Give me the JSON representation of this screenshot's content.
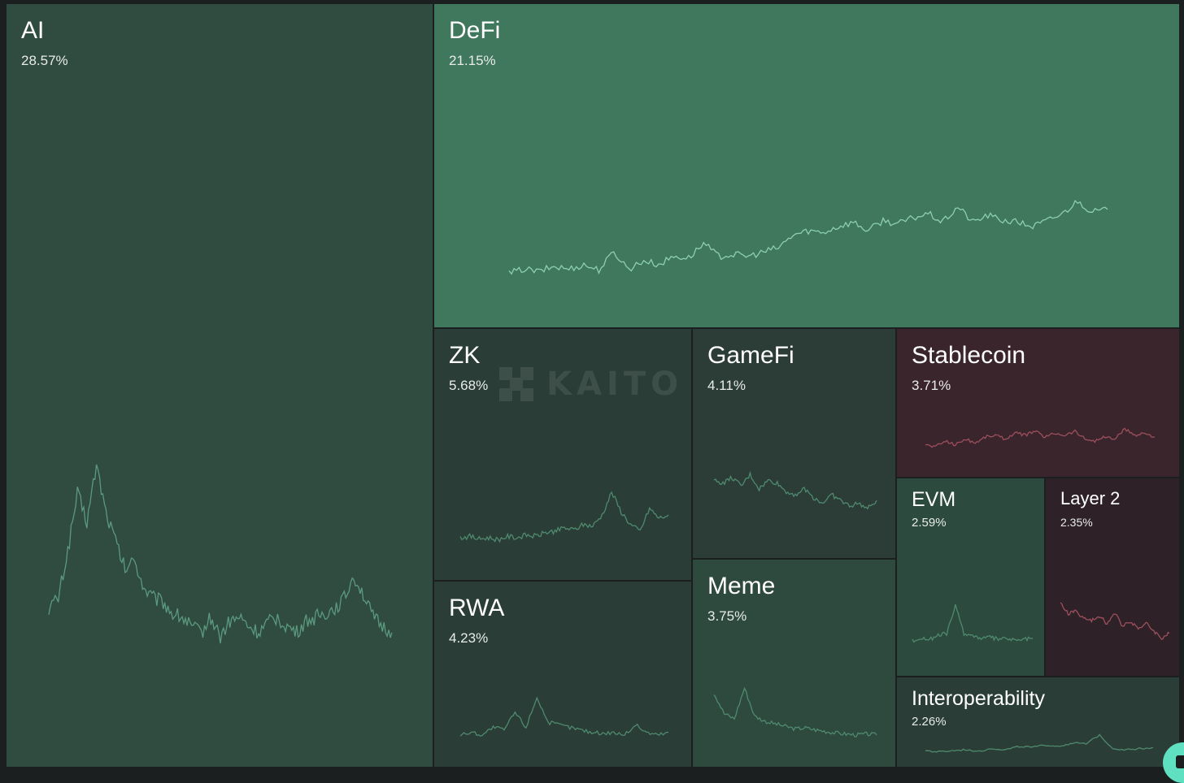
{
  "chart_data": {
    "type": "treemap",
    "title": "",
    "watermark": "KAITO",
    "categories": [
      {
        "key": "ai",
        "name": "AI",
        "share": "28.57%",
        "value": 28.57,
        "trend": "down",
        "color": "#304b40",
        "line_color": "#5b9a80",
        "sparkline": [
          0.25,
          0.3,
          0.55,
          0.85,
          0.7,
          1.0,
          0.75,
          0.6,
          0.45,
          0.5,
          0.35,
          0.3,
          0.28,
          0.22,
          0.2,
          0.15,
          0.12,
          0.2,
          0.1,
          0.18,
          0.2,
          0.15,
          0.12,
          0.17,
          0.2,
          0.15,
          0.12,
          0.18,
          0.2,
          0.22,
          0.25,
          0.3,
          0.42,
          0.32,
          0.2,
          0.15,
          0.12
        ]
      },
      {
        "key": "defi",
        "name": "DeFi",
        "share": "21.15%",
        "value": 21.15,
        "trend": "up",
        "color": "#40785d",
        "line_color": "#8ccfae",
        "sparkline": [
          0.1,
          0.15,
          0.12,
          0.18,
          0.15,
          0.2,
          0.14,
          0.35,
          0.15,
          0.25,
          0.2,
          0.3,
          0.28,
          0.45,
          0.3,
          0.32,
          0.3,
          0.35,
          0.4,
          0.55,
          0.6,
          0.58,
          0.65,
          0.7,
          0.6,
          0.72,
          0.68,
          0.75,
          0.8,
          0.7,
          0.88,
          0.7,
          0.78,
          0.72,
          0.7,
          0.65,
          0.72,
          0.8,
          0.95,
          0.82,
          0.85
        ]
      },
      {
        "key": "zk",
        "name": "ZK",
        "share": "5.68%",
        "value": 5.68,
        "trend": "up",
        "color": "#2a3d36",
        "line_color": "#4f8a6f",
        "sparkline": [
          0.1,
          0.12,
          0.08,
          0.1,
          0.07,
          0.12,
          0.1,
          0.14,
          0.12,
          0.18,
          0.2,
          0.25,
          0.22,
          0.3,
          0.28,
          0.45,
          0.8,
          0.5,
          0.3,
          0.2,
          0.55,
          0.4,
          0.45
        ]
      },
      {
        "key": "gamefi",
        "name": "GameFi",
        "share": "4.11%",
        "value": 4.11,
        "trend": "down",
        "color": "#2b3d36",
        "line_color": "#4f8a6f",
        "sparkline": [
          0.75,
          0.7,
          0.8,
          0.65,
          0.85,
          0.6,
          0.75,
          0.7,
          0.55,
          0.5,
          0.6,
          0.45,
          0.35,
          0.5,
          0.4,
          0.3,
          0.35,
          0.25,
          0.4
        ]
      },
      {
        "key": "stablecoin",
        "name": "Stablecoin",
        "share": "3.71%",
        "value": 3.71,
        "trend": "flat",
        "color": "#3a252c",
        "line_color": "#9c4f5c",
        "sparkline": [
          0.3,
          0.25,
          0.4,
          0.3,
          0.45,
          0.35,
          0.5,
          0.55,
          0.45,
          0.6,
          0.55,
          0.65,
          0.5,
          0.6,
          0.55,
          0.65,
          0.45,
          0.4,
          0.5,
          0.45,
          0.7,
          0.55,
          0.6,
          0.5
        ]
      },
      {
        "key": "rwa",
        "name": "RWA",
        "share": "4.23%",
        "value": 4.23,
        "trend": "flat",
        "color": "#2a3d36",
        "line_color": "#4f8a6f",
        "sparkline": [
          0.15,
          0.2,
          0.15,
          0.3,
          0.25,
          0.6,
          0.3,
          0.9,
          0.4,
          0.35,
          0.3,
          0.25,
          0.2,
          0.18,
          0.2,
          0.15,
          0.35,
          0.2,
          0.15,
          0.2
        ]
      },
      {
        "key": "meme",
        "name": "Meme",
        "share": "3.75%",
        "value": 3.75,
        "trend": "down",
        "color": "#2e4a3f",
        "line_color": "#4f8a6f",
        "sparkline": [
          0.9,
          0.5,
          0.4,
          1.0,
          0.45,
          0.35,
          0.3,
          0.25,
          0.2,
          0.22,
          0.18,
          0.15,
          0.12,
          0.1,
          0.08,
          0.1,
          0.08
        ]
      },
      {
        "key": "evm",
        "name": "EVM",
        "share": "2.59%",
        "value": 2.59,
        "trend": "flat",
        "color": "#2c4a3e",
        "line_color": "#4f8a6f",
        "sparkline": [
          0.15,
          0.2,
          0.18,
          0.25,
          0.3,
          0.85,
          0.3,
          0.25,
          0.2,
          0.22,
          0.18,
          0.2,
          0.15,
          0.18,
          0.2
        ]
      },
      {
        "key": "layer2",
        "name": "Layer 2",
        "share": "2.35%",
        "value": 2.35,
        "trend": "down",
        "color": "#2e2228",
        "line_color": "#9c4f5c",
        "sparkline": [
          0.9,
          0.7,
          0.75,
          0.6,
          0.55,
          0.65,
          0.5,
          0.7,
          0.45,
          0.55,
          0.4,
          0.5,
          0.35,
          0.2,
          0.3
        ]
      },
      {
        "key": "interop",
        "name": "Interoperability",
        "share": "2.26%",
        "value": 2.26,
        "trend": "flat",
        "color": "#2a3d36",
        "line_color": "#4f8a6f",
        "sparkline": [
          0.2,
          0.15,
          0.2,
          0.25,
          0.2,
          0.3,
          0.25,
          0.4,
          0.35,
          0.45,
          0.4,
          0.55,
          0.5,
          0.9,
          0.3,
          0.25,
          0.3,
          0.35
        ]
      }
    ]
  }
}
